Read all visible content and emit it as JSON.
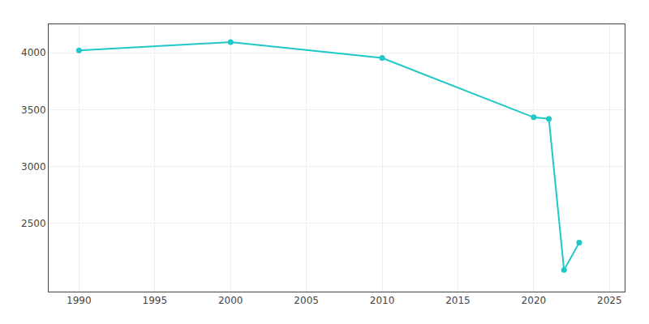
{
  "chart_data": {
    "type": "line",
    "x": [
      1990,
      2000,
      2010,
      2020,
      2021,
      2022,
      2023
    ],
    "values": [
      4021,
      4093,
      3954,
      3432,
      3419,
      2090,
      2330
    ],
    "color": "#20C8C8",
    "marker": "circle",
    "line_style": "solid",
    "xlim": [
      1988,
      2026
    ],
    "ylim": [
      1900,
      4250
    ],
    "xticks": [
      1990,
      1995,
      2000,
      2005,
      2010,
      2015,
      2020,
      2025
    ],
    "yticks": [
      2500,
      3000,
      3500,
      4000
    ],
    "grid": true
  }
}
